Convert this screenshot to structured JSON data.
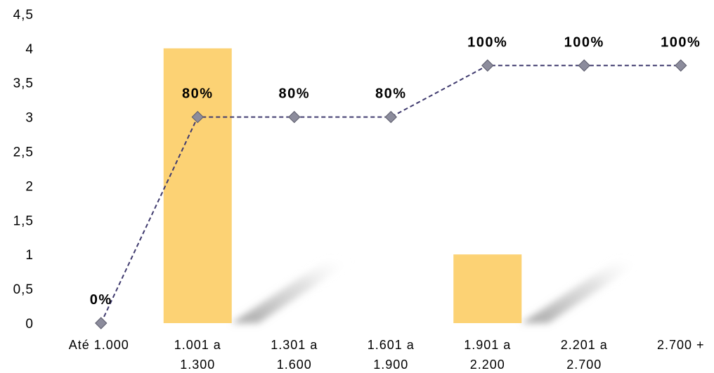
{
  "chart_data": {
    "type": "bar",
    "categories": [
      [
        "Até 1.000"
      ],
      [
        "1.001 a",
        "1.300"
      ],
      [
        "1.301 a",
        "1.600"
      ],
      [
        "1.601 a",
        "1.900"
      ],
      [
        "1.901 a",
        "2.200"
      ],
      [
        "2.201 a",
        "2.700"
      ],
      [
        "2.700 +"
      ]
    ],
    "series": [
      {
        "type": "bar",
        "values": [
          0,
          4,
          0,
          0,
          1,
          0,
          0
        ],
        "color": "#FCD274"
      },
      {
        "type": "line",
        "values": [
          0,
          3,
          3,
          3,
          3.75,
          3.75,
          3.75
        ],
        "data_labels": [
          "0%",
          "80%",
          "80%",
          "80%",
          "100%",
          "100%",
          "100%"
        ],
        "color": "#3F3A6E",
        "marker_color": "#8C8C9C",
        "line_style": "dashed"
      }
    ],
    "yticks": [
      "0",
      "0,5",
      "1",
      "1,5",
      "2",
      "2,5",
      "3",
      "3,5",
      "4",
      "4,5"
    ],
    "ylim": [
      0,
      4.5
    ],
    "grid": false,
    "legend": "none"
  }
}
